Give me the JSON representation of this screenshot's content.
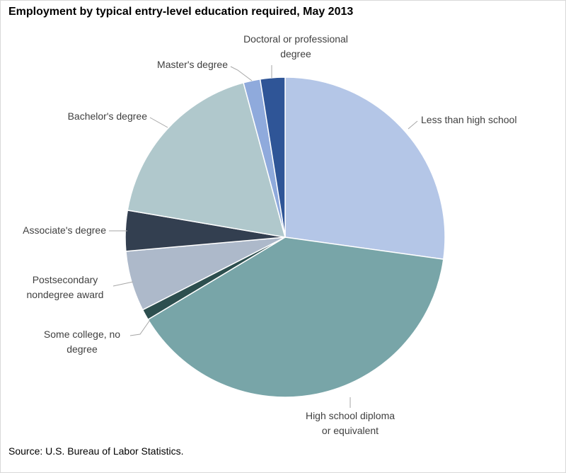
{
  "chart_data": {
    "type": "pie",
    "title": "Employment by typical entry-level education required, May 2013",
    "source": "Source: U.S. Bureau of Labor Statistics.",
    "categories": [
      "Less than high school",
      "High school diploma or equivalent",
      "Some college, no degree",
      "Postsecondary nondegree award",
      "Associate's degree",
      "Bachelor's degree",
      "Master's degree",
      "Doctoral or professional degree"
    ],
    "values": [
      27.2,
      39.2,
      1.1,
      6.1,
      4.1,
      18.1,
      1.7,
      2.5
    ],
    "colors": [
      "#b4c6e7",
      "#78a5a8",
      "#2d4f4f",
      "#adb9ca",
      "#333f50",
      "#b0c8cc",
      "#8faadc",
      "#2f5597"
    ]
  }
}
